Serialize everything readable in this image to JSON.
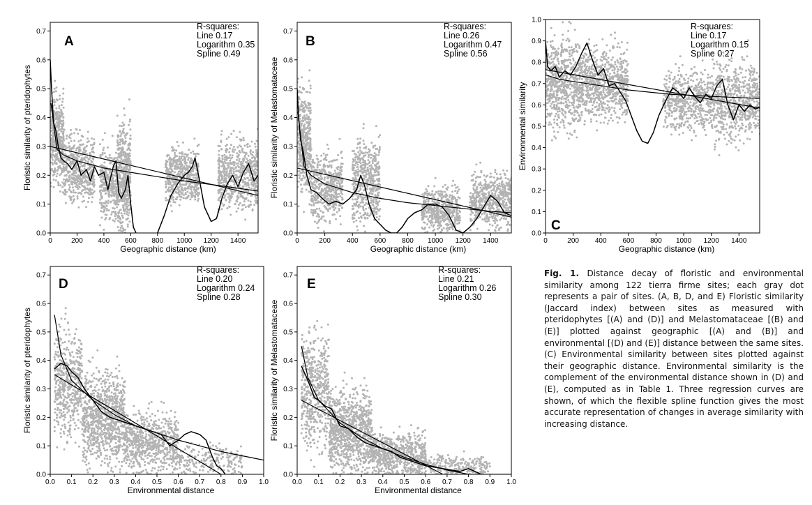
{
  "caption": {
    "label": "Fig. 1.",
    "text": "Distance decay of floristic and environmental similarity among 122 tierra firme sites; each gray dot represents a pair of sites. (A, B, D, and E) Floristic similarity (Jaccard index) between sites as measured with pteridophytes [(A) and (D)] and Melastomataceae [(B) and (E)] plotted against geographic [(A) and (B)] and environmental [(D) and (E)] distance between the same sites. (C) Environmental similarity between sites plotted against their geographic distance. Environmental similarity is the complement of the environmental distance shown in (D) and (E), computed as in Table 1. Three regression curves are shown, of which the flexible spline function gives the most accurate representation of changes in average similarity with increasing distance."
  },
  "colors": {
    "points": "#b3b3b3",
    "curves": "#000000"
  },
  "chart_data": [
    {
      "panel": "A",
      "type": "scatter",
      "xlabel": "Geographic distance (km)",
      "ylabel": "Floristic similarity of pteridophytes",
      "xlim": [
        0,
        1550
      ],
      "ylim": [
        0,
        0.73
      ],
      "xticks": [
        0,
        200,
        400,
        600,
        800,
        1000,
        1200,
        1400
      ],
      "yticks": [
        0.0,
        0.1,
        0.2,
        0.3,
        0.4,
        0.5,
        0.6,
        0.7
      ],
      "r_squares_title": "R-squares:",
      "r_squares": [
        {
          "label": "Line",
          "value": "0.17"
        },
        {
          "label": "Logarithm",
          "value": "0.35"
        },
        {
          "label": "Spline",
          "value": "0.49"
        }
      ],
      "point_clusters": [
        {
          "x": [
            0,
            100
          ],
          "y_center": 0.33,
          "y_spread": 0.16,
          "n": 420
        },
        {
          "x": [
            100,
            330
          ],
          "y_center": 0.22,
          "y_spread": 0.12,
          "n": 500
        },
        {
          "x": [
            370,
            500
          ],
          "y_center": 0.17,
          "y_spread": 0.13,
          "n": 320
        },
        {
          "x": [
            500,
            600
          ],
          "y_center": 0.2,
          "y_spread": 0.19,
          "n": 480
        },
        {
          "x": [
            860,
            1110
          ],
          "y_center": 0.2,
          "y_spread": 0.1,
          "n": 520
        },
        {
          "x": [
            1250,
            1560
          ],
          "y_center": 0.2,
          "y_spread": 0.12,
          "n": 620
        }
      ],
      "line": {
        "x": [
          0,
          1550
        ],
        "y": [
          0.3,
          0.13
        ]
      },
      "logarithm": {
        "x": [
          5,
          50,
          100,
          200,
          400,
          600,
          800,
          1000,
          1200,
          1400,
          1550
        ],
        "y": [
          0.45,
          0.29,
          0.27,
          0.25,
          0.225,
          0.21,
          0.195,
          0.18,
          0.168,
          0.155,
          0.145
        ]
      },
      "spline": {
        "x": [
          0,
          10,
          25,
          40,
          60,
          80,
          100,
          130,
          160,
          200,
          230,
          270,
          300,
          330,
          360,
          400,
          430,
          450,
          470,
          490,
          510,
          530,
          560,
          580,
          600,
          620,
          640
        ],
        "y": [
          0.6,
          0.5,
          0.38,
          0.36,
          0.3,
          0.26,
          0.25,
          0.24,
          0.22,
          0.25,
          0.2,
          0.22,
          0.18,
          0.23,
          0.2,
          0.21,
          0.15,
          0.19,
          0.23,
          0.25,
          0.14,
          0.12,
          0.15,
          0.2,
          0.1,
          0.02,
          0.0
        ]
      },
      "spline2": {
        "x": [
          800,
          850,
          900,
          950,
          1000,
          1030,
          1060,
          1080,
          1110,
          1150,
          1200,
          1240,
          1280,
          1320,
          1360,
          1400,
          1440,
          1480,
          1520,
          1550
        ],
        "y": [
          0.0,
          0.06,
          0.13,
          0.17,
          0.2,
          0.21,
          0.23,
          0.26,
          0.19,
          0.09,
          0.04,
          0.05,
          0.12,
          0.17,
          0.2,
          0.16,
          0.21,
          0.24,
          0.18,
          0.2
        ]
      }
    },
    {
      "panel": "B",
      "type": "scatter",
      "xlabel": "Geographic distance (km)",
      "ylabel": "Floristic similarity of Melastomataceae",
      "xlim": [
        0,
        1550
      ],
      "ylim": [
        0,
        0.73
      ],
      "xticks": [
        0,
        200,
        400,
        600,
        800,
        1000,
        1200,
        1400
      ],
      "yticks": [
        0.0,
        0.1,
        0.2,
        0.3,
        0.4,
        0.5,
        0.6,
        0.7
      ],
      "r_squares_title": "R-squares:",
      "r_squares": [
        {
          "label": "Line",
          "value": "0.26"
        },
        {
          "label": "Logarithm",
          "value": "0.47"
        },
        {
          "label": "Spline",
          "value": "0.56"
        }
      ],
      "point_clusters": [
        {
          "x": [
            0,
            100
          ],
          "y_center": 0.33,
          "y_spread": 0.2,
          "n": 420
        },
        {
          "x": [
            100,
            330
          ],
          "y_center": 0.16,
          "y_spread": 0.12,
          "n": 500
        },
        {
          "x": [
            400,
            600
          ],
          "y_center": 0.18,
          "y_spread": 0.15,
          "n": 520
        },
        {
          "x": [
            900,
            1180
          ],
          "y_center": 0.08,
          "y_spread": 0.08,
          "n": 480
        },
        {
          "x": [
            1250,
            1560
          ],
          "y_center": 0.12,
          "y_spread": 0.1,
          "n": 600
        }
      ],
      "line": {
        "x": [
          0,
          1550
        ],
        "y": [
          0.225,
          0.055
        ]
      },
      "logarithm": {
        "x": [
          5,
          50,
          100,
          200,
          400,
          600,
          800,
          1000,
          1200,
          1400,
          1550
        ],
        "y": [
          0.42,
          0.23,
          0.2,
          0.17,
          0.14,
          0.12,
          0.105,
          0.095,
          0.085,
          0.075,
          0.07
        ]
      },
      "spline": {
        "x": [
          0,
          10,
          25,
          45,
          70,
          100,
          140,
          180,
          230,
          280,
          330,
          380,
          430,
          460,
          490,
          520,
          560,
          600,
          640,
          680,
          720,
          760,
          800,
          850,
          900,
          950,
          1000,
          1050,
          1100,
          1150,
          1200,
          1250,
          1300,
          1350,
          1400,
          1450,
          1500,
          1550
        ],
        "y": [
          0.5,
          0.4,
          0.32,
          0.28,
          0.2,
          0.15,
          0.14,
          0.12,
          0.1,
          0.11,
          0.1,
          0.12,
          0.15,
          0.2,
          0.16,
          0.1,
          0.05,
          0.03,
          0.01,
          0.0,
          0.0,
          0.02,
          0.05,
          0.07,
          0.08,
          0.1,
          0.1,
          0.09,
          0.06,
          0.01,
          0.0,
          0.02,
          0.05,
          0.09,
          0.13,
          0.11,
          0.07,
          0.06
        ]
      }
    },
    {
      "panel": "C",
      "type": "scatter",
      "xlabel": "Geographic distance (km)",
      "ylabel": "Environmental similarity",
      "xlim": [
        0,
        1550
      ],
      "ylim": [
        0,
        1.0
      ],
      "xticks": [
        0,
        200,
        400,
        600,
        800,
        1000,
        1200,
        1400
      ],
      "yticks": [
        0.0,
        0.1,
        0.2,
        0.3,
        0.4,
        0.5,
        0.6,
        0.7,
        0.8,
        0.9,
        1.0
      ],
      "r_squares_title": "R-squares:",
      "r_squares": [
        {
          "label": "Line",
          "value": "0.17"
        },
        {
          "label": "Logarithm",
          "value": "0.15"
        },
        {
          "label": "Spline",
          "value": "0.27"
        }
      ],
      "point_clusters": [
        {
          "x": [
            0,
            250
          ],
          "y_center": 0.7,
          "y_spread": 0.22,
          "n": 650
        },
        {
          "x": [
            250,
            600
          ],
          "y_center": 0.7,
          "y_spread": 0.18,
          "n": 750
        },
        {
          "x": [
            850,
            1200
          ],
          "y_center": 0.62,
          "y_spread": 0.15,
          "n": 520
        },
        {
          "x": [
            1200,
            1560
          ],
          "y_center": 0.62,
          "y_spread": 0.2,
          "n": 650
        }
      ],
      "line": {
        "x": [
          0,
          1550
        ],
        "y": [
          0.765,
          0.585
        ]
      },
      "logarithm": {
        "x": [
          5,
          100,
          300,
          600,
          900,
          1200,
          1550
        ],
        "y": [
          0.74,
          0.72,
          0.7,
          0.67,
          0.65,
          0.64,
          0.63
        ]
      },
      "spline": {
        "x": [
          0,
          15,
          40,
          70,
          100,
          140,
          180,
          220,
          260,
          300,
          340,
          380,
          420,
          460,
          500,
          540,
          580,
          620,
          660,
          700,
          740,
          780,
          820,
          870,
          920,
          960,
          1000,
          1040,
          1080,
          1120,
          1160,
          1200,
          1240,
          1280,
          1320,
          1360,
          1400,
          1440,
          1480,
          1520,
          1550
        ],
        "y": [
          0.9,
          0.78,
          0.76,
          0.78,
          0.73,
          0.76,
          0.74,
          0.78,
          0.84,
          0.89,
          0.81,
          0.74,
          0.77,
          0.69,
          0.7,
          0.66,
          0.62,
          0.55,
          0.48,
          0.43,
          0.42,
          0.47,
          0.55,
          0.62,
          0.68,
          0.66,
          0.63,
          0.68,
          0.64,
          0.61,
          0.65,
          0.63,
          0.69,
          0.72,
          0.6,
          0.53,
          0.6,
          0.57,
          0.6,
          0.58,
          0.59
        ]
      }
    },
    {
      "panel": "D",
      "type": "scatter",
      "xlabel": "Environmental distance",
      "ylabel": "Floristic similarity of pteridophytes",
      "xlim": [
        0,
        1.0
      ],
      "ylim": [
        0,
        0.73
      ],
      "xticks": [
        0.0,
        0.1,
        0.2,
        0.3,
        0.4,
        0.5,
        0.6,
        0.7,
        0.8,
        0.9,
        1.0
      ],
      "yticks": [
        0.0,
        0.1,
        0.2,
        0.3,
        0.4,
        0.5,
        0.6,
        0.7
      ],
      "r_squares_title": "R-squares:",
      "r_squares": [
        {
          "label": "Line",
          "value": "0.20"
        },
        {
          "label": "Logarithm",
          "value": "0.24"
        },
        {
          "label": "Spline",
          "value": "0.28"
        }
      ],
      "point_clusters": [
        {
          "x": [
            0.02,
            0.15
          ],
          "y_center": 0.32,
          "y_spread": 0.2,
          "n": 520
        },
        {
          "x": [
            0.15,
            0.35
          ],
          "y_center": 0.2,
          "y_spread": 0.17,
          "n": 900
        },
        {
          "x": [
            0.35,
            0.6
          ],
          "y_center": 0.11,
          "y_spread": 0.11,
          "n": 650
        },
        {
          "x": [
            0.6,
            0.9
          ],
          "y_center": 0.05,
          "y_spread": 0.06,
          "n": 220
        }
      ],
      "line": {
        "x": [
          0.02,
          0.8
        ],
        "y": [
          0.35,
          0.0
        ]
      },
      "logarithm": {
        "x": [
          0.02,
          0.05,
          0.1,
          0.2,
          0.3,
          0.4,
          0.5,
          0.6,
          0.7,
          0.8,
          0.9,
          1.0
        ],
        "y": [
          0.56,
          0.42,
          0.33,
          0.26,
          0.21,
          0.17,
          0.145,
          0.12,
          0.1,
          0.08,
          0.065,
          0.05
        ]
      },
      "spline": {
        "x": [
          0.02,
          0.05,
          0.08,
          0.1,
          0.13,
          0.16,
          0.2,
          0.24,
          0.28,
          0.32,
          0.36,
          0.4,
          0.44,
          0.48,
          0.52,
          0.56,
          0.6,
          0.63,
          0.66,
          0.7,
          0.73,
          0.76,
          0.78,
          0.8,
          0.82
        ],
        "y": [
          0.37,
          0.39,
          0.38,
          0.36,
          0.34,
          0.3,
          0.26,
          0.22,
          0.2,
          0.19,
          0.18,
          0.17,
          0.16,
          0.15,
          0.14,
          0.1,
          0.12,
          0.14,
          0.15,
          0.14,
          0.12,
          0.06,
          0.03,
          0.02,
          0.0
        ]
      }
    },
    {
      "panel": "E",
      "type": "scatter",
      "xlabel": "Environmental distance",
      "ylabel": "Floristic similarity of Melastomataceae",
      "xlim": [
        0,
        1.0
      ],
      "ylim": [
        0,
        0.73
      ],
      "xticks": [
        0.0,
        0.1,
        0.2,
        0.3,
        0.4,
        0.5,
        0.6,
        0.7,
        0.8,
        0.9,
        1.0
      ],
      "yticks": [
        0.0,
        0.1,
        0.2,
        0.3,
        0.4,
        0.5,
        0.6,
        0.7
      ],
      "r_squares_title": "R-squares:",
      "r_squares": [
        {
          "label": "Line",
          "value": "0.21"
        },
        {
          "label": "Logarithm",
          "value": "0.26"
        },
        {
          "label": "Spline",
          "value": "0.30"
        }
      ],
      "point_clusters": [
        {
          "x": [
            0.02,
            0.15
          ],
          "y_center": 0.3,
          "y_spread": 0.22,
          "n": 520
        },
        {
          "x": [
            0.15,
            0.35
          ],
          "y_center": 0.15,
          "y_spread": 0.15,
          "n": 900
        },
        {
          "x": [
            0.35,
            0.6
          ],
          "y_center": 0.07,
          "y_spread": 0.08,
          "n": 650
        },
        {
          "x": [
            0.6,
            0.9
          ],
          "y_center": 0.03,
          "y_spread": 0.04,
          "n": 220
        }
      ],
      "line": {
        "x": [
          0.02,
          0.68
        ],
        "y": [
          0.26,
          0.0
        ]
      },
      "logarithm": {
        "x": [
          0.02,
          0.05,
          0.1,
          0.2,
          0.3,
          0.4,
          0.5,
          0.6,
          0.7,
          0.8,
          0.9,
          1.0
        ],
        "y": [
          0.45,
          0.34,
          0.26,
          0.18,
          0.13,
          0.09,
          0.06,
          0.035,
          0.015,
          0.0,
          0.0,
          0.0
        ]
      },
      "spline": {
        "x": [
          0.02,
          0.05,
          0.08,
          0.1,
          0.13,
          0.16,
          0.2,
          0.24,
          0.28,
          0.32,
          0.36,
          0.4,
          0.44,
          0.48,
          0.52,
          0.56,
          0.6,
          0.64,
          0.68,
          0.72,
          0.76,
          0.8,
          0.83,
          0.86
        ],
        "y": [
          0.38,
          0.33,
          0.27,
          0.26,
          0.24,
          0.23,
          0.17,
          0.16,
          0.13,
          0.11,
          0.1,
          0.09,
          0.08,
          0.06,
          0.05,
          0.04,
          0.03,
          0.025,
          0.02,
          0.015,
          0.01,
          0.02,
          0.01,
          0.0
        ]
      }
    }
  ]
}
